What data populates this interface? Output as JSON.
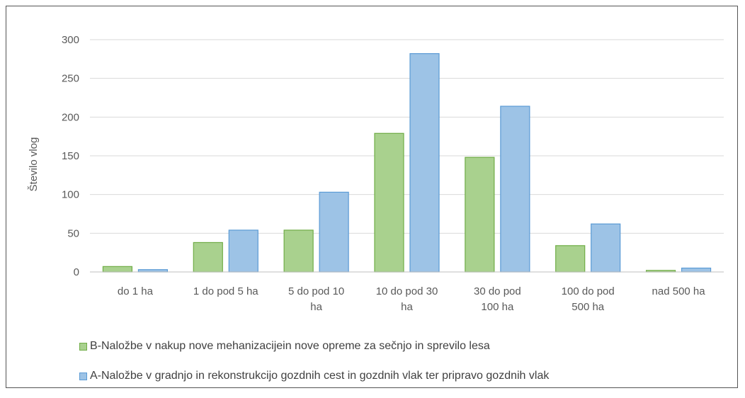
{
  "chart_data": {
    "type": "bar",
    "ylabel": "Število vlog",
    "xlabel": "",
    "ylim": [
      0,
      300
    ],
    "yticks": [
      0,
      50,
      100,
      150,
      200,
      250,
      300
    ],
    "categories": [
      [
        "do 1 ha"
      ],
      [
        "1 do pod 5 ha"
      ],
      [
        "5 do pod 10",
        "ha"
      ],
      [
        "10 do pod 30",
        "ha"
      ],
      [
        "30 do pod",
        "100 ha"
      ],
      [
        "100 do pod",
        "500 ha"
      ],
      [
        "nad 500 ha"
      ]
    ],
    "series": [
      {
        "name": "B-Naložbe v nakup nove mehanizacijein nove opreme za sečnjo in sprevilo lesa",
        "color": "#a9d18e",
        "values": [
          7,
          38,
          54,
          179,
          148,
          34,
          2
        ]
      },
      {
        "name": "A-Naložbe v gradnjo in rekonstrukcijo gozdnih cest in gozdnih vlak ter pripravo gozdnih vlak",
        "color": "#9dc3e6",
        "values": [
          3,
          54,
          103,
          282,
          214,
          62,
          5
        ]
      }
    ],
    "grid": true,
    "legend_position": "bottom-left"
  }
}
